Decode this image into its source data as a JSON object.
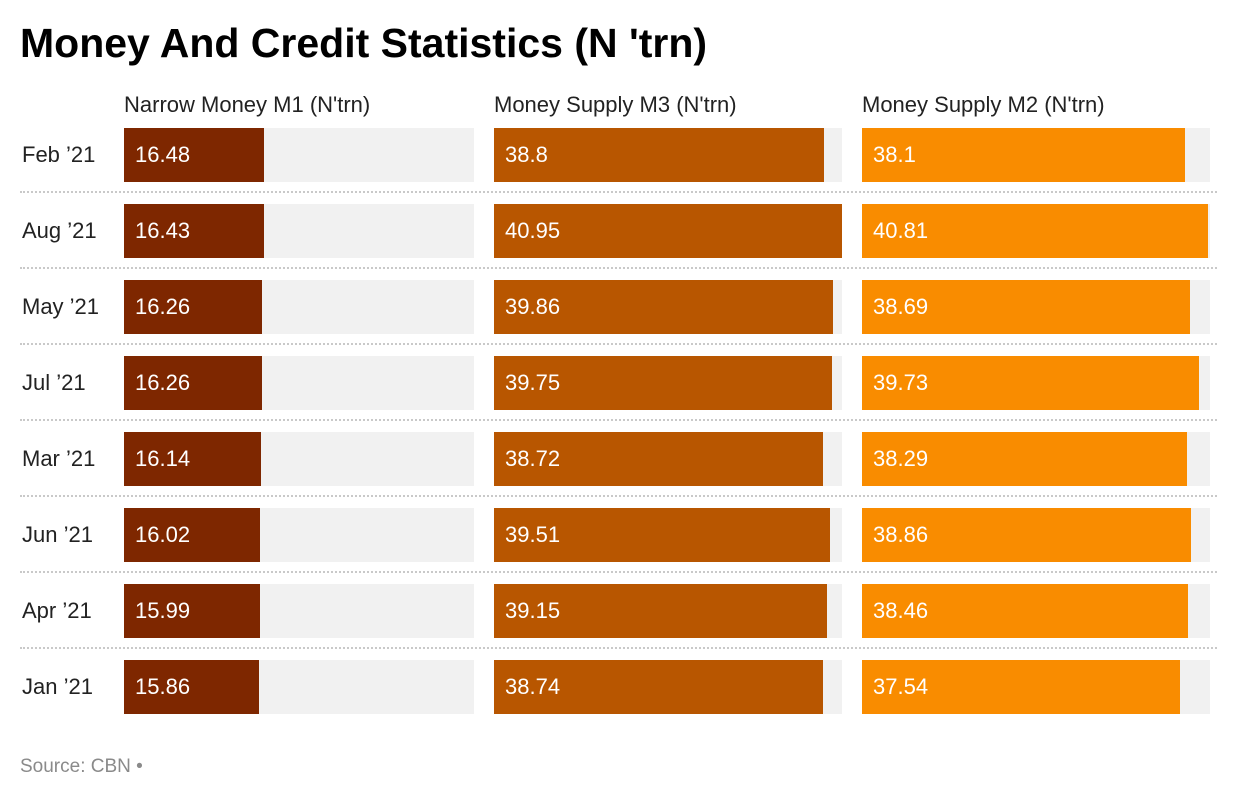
{
  "chart_data": {
    "type": "bar",
    "orientation": "horizontal",
    "title": "Money And Credit Statistics (N 'trn)",
    "categories": [
      "Feb ’21",
      "Aug ’21",
      "May ’21",
      "Jul ’21",
      "Mar ’21",
      "Jun ’21",
      "Apr ’21",
      "Jan ’21"
    ],
    "series": [
      {
        "name": "Narrow Money M1 (N'trn)",
        "color": "#7e2700",
        "max": 16.48,
        "values": [
          16.48,
          16.43,
          16.26,
          16.26,
          16.14,
          16.02,
          15.99,
          15.86
        ],
        "labels": [
          "16.48",
          "16.43",
          "16.26",
          "16.26",
          "16.14",
          "16.02",
          "15.99",
          "15.86"
        ]
      },
      {
        "name": "Money Supply M3 (N'trn)",
        "color": "#b85600",
        "max": 40.95,
        "values": [
          38.8,
          40.95,
          39.86,
          39.75,
          38.72,
          39.51,
          39.15,
          38.74
        ],
        "labels": [
          "38.8",
          "40.95",
          "39.86",
          "39.75",
          "38.72",
          "39.51",
          "39.15",
          "38.74"
        ]
      },
      {
        "name": "Money Supply M2 (N'trn)",
        "color": "#f98c00",
        "max": 40.81,
        "values": [
          38.1,
          40.81,
          38.69,
          39.73,
          38.29,
          38.86,
          38.46,
          37.54
        ],
        "labels": [
          "38.1",
          "40.81",
          "38.69",
          "39.73",
          "38.29",
          "38.86",
          "38.46",
          "37.54"
        ]
      }
    ],
    "source": "Source: CBN •"
  }
}
